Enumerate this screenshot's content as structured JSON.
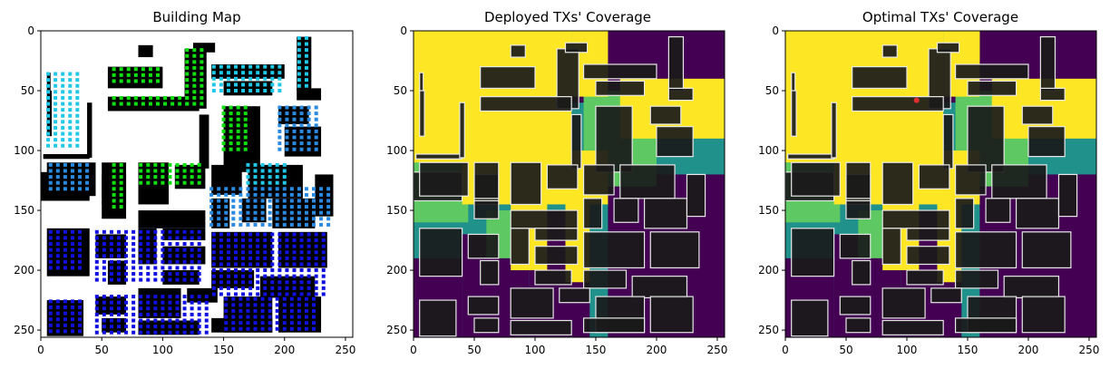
{
  "figure": {
    "panels": [
      {
        "title": "Building Map"
      },
      {
        "title": "Deployed TXs' Coverage"
      },
      {
        "title": "Optimal TXs' Coverage"
      }
    ]
  },
  "colors": {
    "building": "#000000",
    "outline": "#e8e8e8",
    "background_map": "#ffffff",
    "tx_dark_blue": "#1010e0",
    "tx_blue": "#2a8ae0",
    "tx_cyan": "#20c8e8",
    "tx_green": "#10e010",
    "coverage_strong": "#fde725",
    "coverage_good": "#5ec962",
    "coverage_medium": "#21918c",
    "coverage_none": "#440154",
    "optimal_tx": "#e03030"
  },
  "chart_data": [
    {
      "type": "heatmap",
      "title": "Building Map",
      "xlabel": "",
      "ylabel": "",
      "xlim": [
        0,
        256
      ],
      "ylim": [
        256,
        0
      ],
      "xticks": [
        0,
        50,
        100,
        150,
        200,
        250
      ],
      "yticks": [
        0,
        50,
        100,
        150,
        200,
        250
      ],
      "grid": false,
      "legend": "none"
    },
    {
      "type": "heatmap",
      "title": "Deployed TXs' Coverage",
      "xlabel": "",
      "ylabel": "",
      "xlim": [
        0,
        256
      ],
      "ylim": [
        256,
        0
      ],
      "xticks": [
        0,
        50,
        100,
        150,
        200,
        250
      ],
      "yticks": [
        0,
        50,
        100,
        150,
        200,
        250
      ],
      "grid": false,
      "legend": "none"
    },
    {
      "type": "heatmap",
      "title": "Optimal TXs' Coverage",
      "xlabel": "",
      "ylabel": "",
      "xlim": [
        0,
        256
      ],
      "ylim": [
        256,
        0
      ],
      "xticks": [
        0,
        50,
        100,
        150,
        200,
        250
      ],
      "yticks": [
        0,
        50,
        100,
        150,
        200,
        250
      ],
      "grid": false,
      "legend": "none",
      "marker": {
        "x": 108,
        "y": 58
      }
    }
  ],
  "buildings": [
    [
      5,
      35,
      3,
      15
    ],
    [
      5,
      50,
      4,
      38
    ],
    [
      2,
      103,
      38,
      4
    ],
    [
      38,
      60,
      4,
      46
    ],
    [
      0,
      118,
      40,
      24
    ],
    [
      50,
      120,
      20,
      25
    ],
    [
      55,
      30,
      45,
      18
    ],
    [
      118,
      15,
      18,
      50
    ],
    [
      210,
      5,
      12,
      45
    ],
    [
      55,
      55,
      75,
      12
    ],
    [
      130,
      70,
      8,
      45
    ],
    [
      80,
      12,
      12,
      10
    ],
    [
      125,
      10,
      18,
      8
    ],
    [
      140,
      28,
      60,
      12
    ],
    [
      150,
      42,
      40,
      12
    ],
    [
      210,
      48,
      20,
      10
    ],
    [
      150,
      63,
      30,
      55
    ],
    [
      195,
      63,
      25,
      15
    ],
    [
      200,
      80,
      30,
      25
    ],
    [
      5,
      110,
      40,
      28
    ],
    [
      50,
      110,
      20,
      30
    ],
    [
      50,
      142,
      20,
      15
    ],
    [
      80,
      110,
      25,
      35
    ],
    [
      110,
      112,
      25,
      20
    ],
    [
      80,
      150,
      55,
      15
    ],
    [
      140,
      112,
      25,
      25
    ],
    [
      170,
      112,
      45,
      28
    ],
    [
      140,
      140,
      15,
      25
    ],
    [
      165,
      140,
      20,
      20
    ],
    [
      190,
      140,
      35,
      25
    ],
    [
      225,
      120,
      15,
      35
    ],
    [
      5,
      165,
      35,
      40
    ],
    [
      45,
      170,
      25,
      20
    ],
    [
      55,
      192,
      15,
      20
    ],
    [
      80,
      165,
      15,
      30
    ],
    [
      100,
      165,
      35,
      10
    ],
    [
      100,
      180,
      35,
      15
    ],
    [
      100,
      200,
      30,
      12
    ],
    [
      140,
      168,
      50,
      30
    ],
    [
      195,
      168,
      40,
      30
    ],
    [
      140,
      200,
      35,
      15
    ],
    [
      180,
      205,
      45,
      18
    ],
    [
      5,
      225,
      30,
      30
    ],
    [
      45,
      222,
      25,
      15
    ],
    [
      50,
      240,
      20,
      12
    ],
    [
      80,
      215,
      35,
      25
    ],
    [
      120,
      215,
      25,
      12
    ],
    [
      150,
      222,
      40,
      30
    ],
    [
      195,
      222,
      35,
      30
    ],
    [
      80,
      242,
      50,
      12
    ],
    [
      140,
      240,
      50,
      12
    ]
  ],
  "dots": [
    {
      "x": [
        60,
        96
      ],
      "y": [
        32,
        46
      ],
      "c": "tx_green"
    },
    {
      "x": [
        120,
        132
      ],
      "y": [
        16,
        62
      ],
      "c": "tx_green"
    },
    {
      "x": [
        60,
        125
      ],
      "y": [
        56,
        64
      ],
      "c": "tx_green"
    },
    {
      "x": [
        150,
        170
      ],
      "y": [
        64,
        100
      ],
      "c": "tx_green"
    },
    {
      "x": [
        60,
        70
      ],
      "y": [
        112,
        150
      ],
      "c": "tx_green"
    },
    {
      "x": [
        82,
        130
      ],
      "y": [
        112,
        128
      ],
      "c": "tx_green"
    },
    {
      "x": [
        212,
        220
      ],
      "y": [
        6,
        48
      ],
      "c": "tx_cyan"
    },
    {
      "x": [
        142,
        196
      ],
      "y": [
        30,
        52
      ],
      "c": "tx_cyan"
    },
    {
      "x": [
        6,
        30
      ],
      "y": [
        36,
        100
      ],
      "c": "tx_cyan"
    },
    {
      "x": [
        170,
        200
      ],
      "y": [
        112,
        130
      ],
      "c": "tx_cyan"
    },
    {
      "x": [
        196,
        226
      ],
      "y": [
        64,
        102
      ],
      "c": "tx_blue"
    },
    {
      "x": [
        8,
        40
      ],
      "y": [
        112,
        136
      ],
      "c": "tx_blue"
    },
    {
      "x": [
        140,
        236
      ],
      "y": [
        132,
        162
      ],
      "c": "tx_blue"
    },
    {
      "x": [
        8,
        36
      ],
      "y": [
        168,
        200
      ],
      "c": "tx_dark_blue"
    },
    {
      "x": [
        46,
        130
      ],
      "y": [
        168,
        210
      ],
      "c": "tx_dark_blue"
    },
    {
      "x": [
        142,
        232
      ],
      "y": [
        170,
        220
      ],
      "c": "tx_dark_blue"
    },
    {
      "x": [
        8,
        32
      ],
      "y": [
        226,
        252
      ],
      "c": "tx_dark_blue"
    },
    {
      "x": [
        46,
        140
      ],
      "y": [
        222,
        252
      ],
      "c": "tx_dark_blue"
    },
    {
      "x": [
        152,
        228
      ],
      "y": [
        224,
        250
      ],
      "c": "tx_dark_blue"
    }
  ],
  "coverage_layers": {
    "medium": [
      [
        0,
        0,
        256,
        256
      ]
    ],
    "none": [
      [
        130,
        0,
        126,
        60
      ],
      [
        160,
        120,
        96,
        136
      ],
      [
        95,
        150,
        50,
        106
      ],
      [
        40,
        170,
        55,
        86
      ],
      [
        0,
        190,
        40,
        66
      ]
    ],
    "good": [
      [
        0,
        110,
        45,
        50
      ],
      [
        140,
        50,
        60,
        80
      ],
      [
        60,
        150,
        40,
        40
      ],
      [
        120,
        0,
        40,
        25
      ]
    ],
    "strong": [
      [
        0,
        0,
        130,
        110
      ],
      [
        40,
        100,
        120,
        45
      ],
      [
        80,
        140,
        30,
        60
      ],
      [
        125,
        140,
        20,
        70
      ],
      [
        130,
        0,
        30,
        55
      ],
      [
        170,
        40,
        86,
        50
      ]
    ]
  }
}
